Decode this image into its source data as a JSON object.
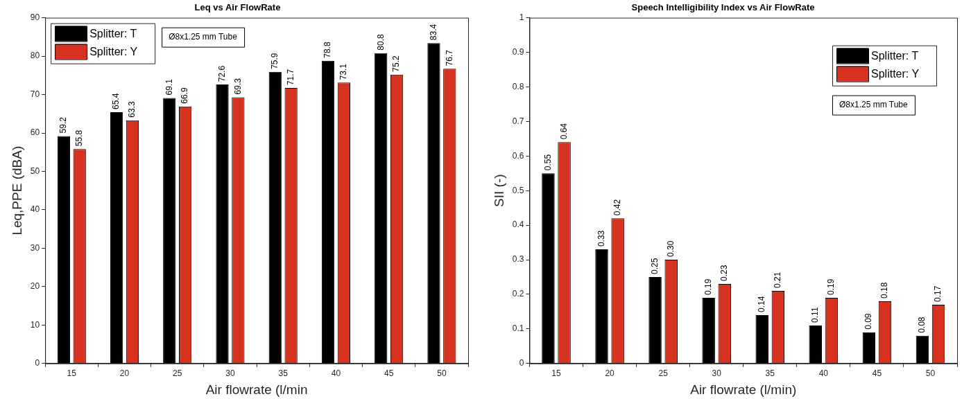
{
  "chart_data": [
    {
      "type": "bar",
      "title": "Leq vs Air FlowRate",
      "xlabel": "Air flowrate (l/min",
      "ylabel": "Leq,PPE (dBA)",
      "categories": [
        "15",
        "20",
        "25",
        "30",
        "35",
        "40",
        "45",
        "50"
      ],
      "series": [
        {
          "name": "Splitter: T",
          "color": "#000000",
          "values": [
            59.2,
            65.4,
            69.1,
            72.6,
            75.9,
            78.8,
            80.8,
            83.4
          ]
        },
        {
          "name": "Splitter: Y",
          "color": "#d7321f",
          "values": [
            55.8,
            63.3,
            66.9,
            69.3,
            71.7,
            73.1,
            75.2,
            76.7
          ]
        }
      ],
      "ylim": [
        0,
        90
      ],
      "yticks": [
        0,
        10,
        20,
        30,
        40,
        50,
        60,
        70,
        80,
        90
      ],
      "grid": false,
      "legend": "top left",
      "data_labels": true,
      "annotations": [
        "Ø8x1.25 mm Tube"
      ]
    },
    {
      "type": "bar",
      "title": "Speech Intelligibility Index vs Air FlowRate",
      "xlabel": "Air flowrate (l/min)",
      "ylabel": "SII (-)",
      "categories": [
        "15",
        "20",
        "25",
        "30",
        "35",
        "40",
        "45",
        "50"
      ],
      "series": [
        {
          "name": "Splitter: T",
          "color": "#000000",
          "values": [
            0.55,
            0.33,
            0.25,
            0.19,
            0.14,
            0.11,
            0.09,
            0.08
          ],
          "value_labels": [
            "0.55",
            "0.33",
            "0.25",
            "0.19",
            "0.14",
            "0.11",
            "0.09",
            "0.08"
          ]
        },
        {
          "name": "Splitter: Y",
          "color": "#d7321f",
          "values": [
            0.64,
            0.42,
            0.3,
            0.23,
            0.21,
            0.19,
            0.18,
            0.17
          ],
          "value_labels": [
            "0.64",
            "0.42",
            "0.30",
            "0.23",
            "0.21",
            "0.19",
            "0.18",
            "0.17"
          ]
        }
      ],
      "ylim": [
        0,
        1
      ],
      "yticks": [
        0,
        0.1,
        0.2,
        0.3,
        0.4,
        0.5,
        0.6,
        0.7,
        0.8,
        0.9,
        1
      ],
      "grid": false,
      "legend": "top right",
      "annotations": [
        "Ø8x1.25 mm Tube"
      ]
    }
  ]
}
